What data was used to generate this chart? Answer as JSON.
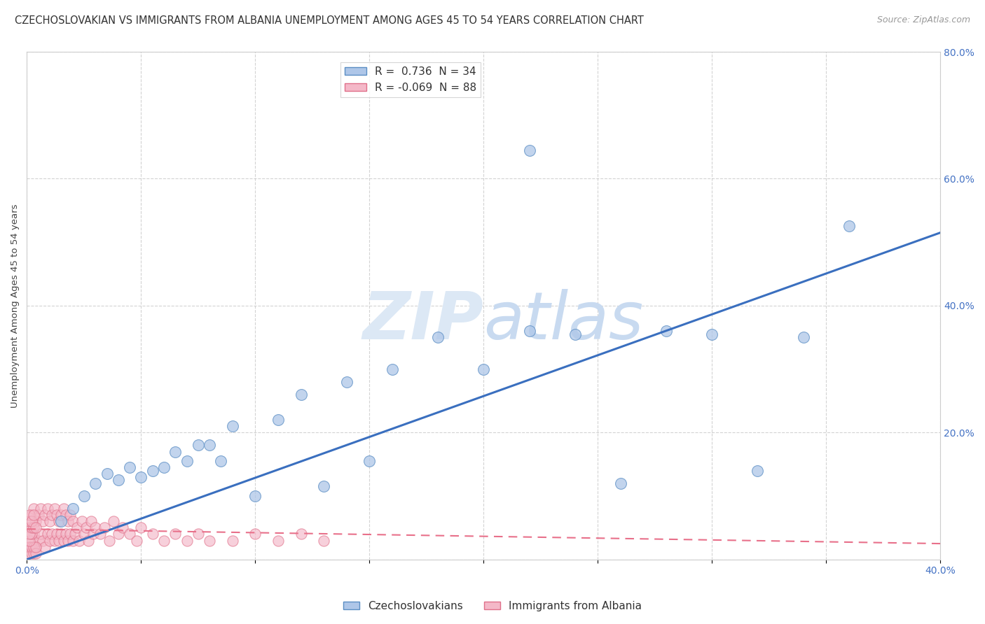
{
  "title": "CZECHOSLOVAKIAN VS IMMIGRANTS FROM ALBANIA UNEMPLOYMENT AMONG AGES 45 TO 54 YEARS CORRELATION CHART",
  "source": "Source: ZipAtlas.com",
  "ylabel": "Unemployment Among Ages 45 to 54 years",
  "xlim": [
    0,
    0.4
  ],
  "ylim": [
    0,
    0.8
  ],
  "blue_color": "#aec6e8",
  "pink_color": "#f4b8c8",
  "blue_edge_color": "#5b8ec4",
  "pink_edge_color": "#e0708a",
  "blue_line_color": "#3a6fbf",
  "pink_line_color": "#e8708a",
  "background_color": "#ffffff",
  "watermark_color": "#dce8f5",
  "title_fontsize": 10.5,
  "axis_label_fontsize": 9.5,
  "tick_fontsize": 10,
  "legend_fontsize": 11,
  "blue_trend_x0": 0.0,
  "blue_trend_y0": 0.0,
  "blue_trend_x1": 0.4,
  "blue_trend_y1": 0.515,
  "pink_trend_x0": 0.0,
  "pink_trend_y0": 0.048,
  "pink_trend_x1": 0.4,
  "pink_trend_y1": 0.025,
  "blue_scatter_x": [
    0.015,
    0.02,
    0.025,
    0.03,
    0.035,
    0.04,
    0.045,
    0.05,
    0.055,
    0.06,
    0.065,
    0.07,
    0.075,
    0.08,
    0.085,
    0.09,
    0.1,
    0.11,
    0.12,
    0.13,
    0.14,
    0.15,
    0.16,
    0.18,
    0.2,
    0.22,
    0.24,
    0.26,
    0.28,
    0.3,
    0.32,
    0.34,
    0.36,
    0.22
  ],
  "blue_scatter_y": [
    0.06,
    0.08,
    0.1,
    0.12,
    0.135,
    0.125,
    0.145,
    0.13,
    0.14,
    0.145,
    0.17,
    0.155,
    0.18,
    0.18,
    0.155,
    0.21,
    0.1,
    0.22,
    0.26,
    0.115,
    0.28,
    0.155,
    0.3,
    0.35,
    0.3,
    0.36,
    0.355,
    0.12,
    0.36,
    0.355,
    0.14,
    0.35,
    0.525,
    0.645
  ],
  "pink_scatter_x": [
    0.001,
    0.001,
    0.002,
    0.002,
    0.003,
    0.003,
    0.004,
    0.004,
    0.005,
    0.005,
    0.006,
    0.006,
    0.007,
    0.007,
    0.008,
    0.008,
    0.009,
    0.009,
    0.01,
    0.01,
    0.011,
    0.011,
    0.012,
    0.012,
    0.013,
    0.013,
    0.014,
    0.014,
    0.015,
    0.015,
    0.016,
    0.016,
    0.017,
    0.017,
    0.018,
    0.018,
    0.019,
    0.019,
    0.02,
    0.02,
    0.021,
    0.022,
    0.023,
    0.024,
    0.025,
    0.026,
    0.027,
    0.028,
    0.029,
    0.03,
    0.032,
    0.034,
    0.036,
    0.038,
    0.04,
    0.042,
    0.045,
    0.048,
    0.05,
    0.055,
    0.06,
    0.065,
    0.07,
    0.075,
    0.08,
    0.09,
    0.1,
    0.11,
    0.12,
    0.13,
    0.001,
    0.001,
    0.002,
    0.002,
    0.003,
    0.003,
    0.004,
    0.004,
    0.001,
    0.002,
    0.001,
    0.002,
    0.001,
    0.001,
    0.003,
    0.002,
    0.004,
    0.003
  ],
  "pink_scatter_y": [
    0.02,
    0.05,
    0.03,
    0.07,
    0.04,
    0.08,
    0.02,
    0.06,
    0.03,
    0.07,
    0.04,
    0.08,
    0.03,
    0.06,
    0.02,
    0.07,
    0.04,
    0.08,
    0.03,
    0.06,
    0.04,
    0.07,
    0.03,
    0.08,
    0.04,
    0.07,
    0.03,
    0.06,
    0.04,
    0.07,
    0.03,
    0.08,
    0.04,
    0.07,
    0.03,
    0.06,
    0.04,
    0.07,
    0.03,
    0.06,
    0.04,
    0.05,
    0.03,
    0.06,
    0.04,
    0.05,
    0.03,
    0.06,
    0.04,
    0.05,
    0.04,
    0.05,
    0.03,
    0.06,
    0.04,
    0.05,
    0.04,
    0.03,
    0.05,
    0.04,
    0.03,
    0.04,
    0.03,
    0.04,
    0.03,
    0.03,
    0.04,
    0.03,
    0.04,
    0.03,
    0.01,
    0.02,
    0.01,
    0.02,
    0.01,
    0.02,
    0.01,
    0.02,
    0.03,
    0.04,
    0.04,
    0.05,
    0.06,
    0.07,
    0.05,
    0.06,
    0.05,
    0.07
  ]
}
